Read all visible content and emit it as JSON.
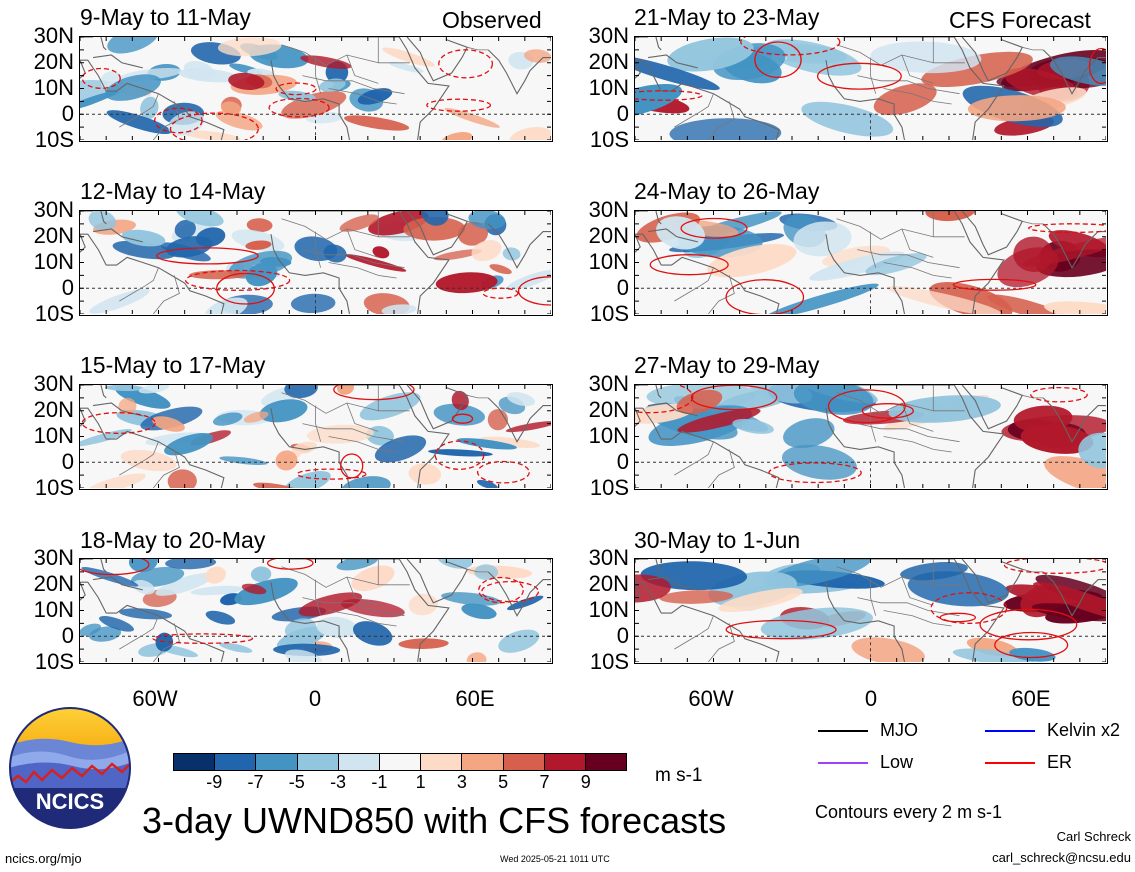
{
  "panels": [
    {
      "title": "9-May to 11-May",
      "tag": "Observed",
      "type": "observed",
      "seed": 1
    },
    {
      "title": "21-May to 23-May",
      "tag": "CFS Forecast",
      "type": "forecast",
      "seed": 5
    },
    {
      "title": "12-May to 14-May",
      "tag": "",
      "type": "observed",
      "seed": 2
    },
    {
      "title": "24-May to 26-May",
      "tag": "",
      "type": "forecast",
      "seed": 6
    },
    {
      "title": "15-May to 17-May",
      "tag": "",
      "type": "observed",
      "seed": 3
    },
    {
      "title": "27-May to 29-May",
      "tag": "",
      "type": "forecast",
      "seed": 7
    },
    {
      "title": "18-May to 20-May",
      "tag": "",
      "type": "observed",
      "seed": 4
    },
    {
      "title": "30-May to 1-Jun",
      "tag": "",
      "type": "forecast",
      "seed": 8
    }
  ],
  "lat_labels": [
    "30N",
    "20N",
    "10N",
    "0",
    "10S"
  ],
  "lon_labels": [
    "60W",
    "0",
    "60E"
  ],
  "colorbar": {
    "colors": [
      "#08306b",
      "#2166ac",
      "#4393c3",
      "#92c5de",
      "#d1e5f0",
      "#f7f7f7",
      "#fddbc7",
      "#f4a582",
      "#d6604d",
      "#b2182b",
      "#67001f"
    ],
    "tick_labels": [
      "-9",
      "-7",
      "-5",
      "-3",
      "-1",
      "1",
      "3",
      "5",
      "7",
      "9"
    ],
    "units": "m s-1"
  },
  "legend": {
    "items": [
      {
        "label": "MJO",
        "color": "#000000"
      },
      {
        "label": "Kelvin x2",
        "color": "#0000ff"
      },
      {
        "label": "Low",
        "color": "#a040ff"
      },
      {
        "label": "ER",
        "color": "#ff0000"
      }
    ],
    "contour_note": "Contours every 2 m s-1"
  },
  "title": "3-day UWND850 with CFS forecasts",
  "logo_text": "NCICS",
  "footer": {
    "url": "ncics.org/mjo",
    "timestamp": "Wed 2025-05-21 1011 UTC",
    "author": "Carl Schreck",
    "email": "carl_schreck@ncsu.edu"
  }
}
